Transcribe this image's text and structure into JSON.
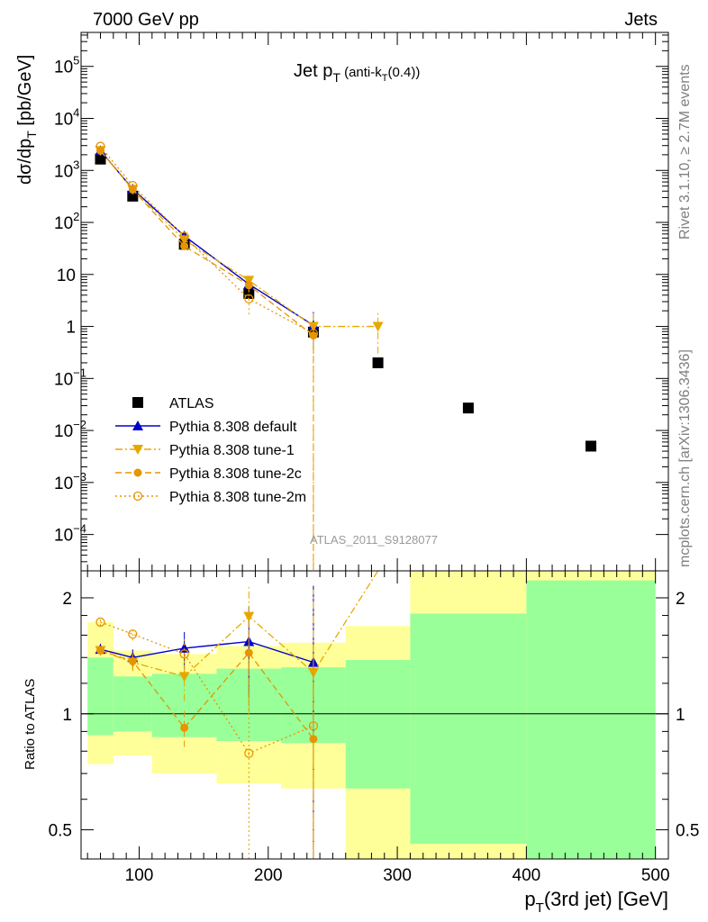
{
  "header": {
    "energy_label": "7000 GeV pp",
    "category_label": "Jets",
    "side_rivet": "Rivet 3.1.10, ≥ 2.7M events",
    "side_mcplots": "mcplots.cern.ch [arXiv:1306.3436]",
    "watermark": "ATLAS_2011_S9128077"
  },
  "chart_data": [
    {
      "type": "scatter",
      "panel": "main",
      "title_main": "Jet p",
      "title_sub": "T",
      "title_rest": " (anti-k",
      "title_rest_sub": "T",
      "title_rest_end": "(0.4))",
      "ylabel": "dσ/dp",
      "ylabel_sub": "T",
      "ylabel_unit": " [pb/GeV]",
      "yscale": "log",
      "ylim": [
        2e-05,
        450000
      ],
      "xlim": [
        55,
        510
      ],
      "yticks": [
        {
          "v": 0.0001,
          "base": "10",
          "exp": "−4"
        },
        {
          "v": 0.001,
          "base": "10",
          "exp": "−3"
        },
        {
          "v": 0.01,
          "base": "10",
          "exp": "−2"
        },
        {
          "v": 0.1,
          "base": "10",
          "exp": "−1"
        },
        {
          "v": 1,
          "base": "1",
          "exp": ""
        },
        {
          "v": 10,
          "base": "10",
          "exp": ""
        },
        {
          "v": 100,
          "base": "10",
          "exp": "2"
        },
        {
          "v": 1000,
          "base": "10",
          "exp": "3"
        },
        {
          "v": 10000,
          "base": "10",
          "exp": "4"
        },
        {
          "v": 100000,
          "base": "10",
          "exp": "5"
        }
      ],
      "series": [
        {
          "name": "ATLAS",
          "color": "#000000",
          "marker": "square",
          "line": "none",
          "x": [
            70,
            95,
            135,
            185,
            235,
            285,
            355,
            450
          ],
          "y": [
            1650,
            320,
            38,
            4.3,
            0.78,
            0.2,
            0.027,
            0.005
          ]
        },
        {
          "name": "Pythia 8.308 default",
          "color": "#0000cc",
          "marker": "triangle-up",
          "line": "solid",
          "x": [
            70,
            95,
            135,
            185,
            235
          ],
          "y": [
            2400,
            440,
            55,
            6.5,
            1.05
          ],
          "err_lo": [
            2200,
            410,
            48,
            4.8,
            0.35
          ],
          "err_hi": [
            2600,
            470,
            62,
            8.2,
            1.9
          ]
        },
        {
          "name": "Pythia 8.308 tune-1",
          "color": "#e6a800",
          "marker": "triangle-down",
          "line": "dashdot",
          "x": [
            70,
            95,
            135,
            185,
            235,
            285
          ],
          "y": [
            2400,
            430,
            46,
            7.7,
            1.0,
            1.0
          ],
          "err_lo": [
            2200,
            400,
            40,
            6.0,
            0.0,
            0.3
          ],
          "err_hi": [
            2600,
            460,
            52,
            9.5,
            1.9,
            1.8
          ]
        },
        {
          "name": "Pythia 8.308 tune-2c",
          "color": "#e69500",
          "marker": "circle",
          "line": "dashed",
          "x": [
            70,
            95,
            135,
            185,
            235
          ],
          "y": [
            2400,
            430,
            35,
            6.2,
            0.67
          ],
          "err_lo": [
            2200,
            400,
            31,
            4.5,
            0.0
          ],
          "err_hi": [
            2600,
            460,
            39,
            7.8,
            1.2
          ]
        },
        {
          "name": "Pythia 8.308 tune-2m",
          "color": "#e69500",
          "marker": "circle-open",
          "line": "dotted",
          "x": [
            70,
            95,
            135,
            185,
            235
          ],
          "y": [
            2900,
            510,
            54,
            3.4,
            0.73
          ],
          "err_lo": [
            2650,
            470,
            48,
            1.7,
            0.3
          ],
          "err_hi": [
            3150,
            550,
            60,
            5.1,
            1.2
          ]
        }
      ]
    },
    {
      "type": "scatter",
      "panel": "ratio",
      "ylabel": "Ratio to ATLAS",
      "xlabel": "p",
      "xlabel_sub": "T",
      "xlabel_rest": "(3rd jet) [GeV]",
      "yscale": "log",
      "ylim": [
        0.42,
        2.35
      ],
      "xlim": [
        55,
        510
      ],
      "yticks": [
        {
          "v": 0.5,
          "label": "0.5"
        },
        {
          "v": 1,
          "label": "1"
        },
        {
          "v": 2,
          "label": "2"
        }
      ],
      "xticks": [
        {
          "v": 100,
          "label": "100"
        },
        {
          "v": 200,
          "label": "200"
        },
        {
          "v": 300,
          "label": "300"
        },
        {
          "v": 400,
          "label": "400"
        },
        {
          "v": 500,
          "label": "500"
        }
      ],
      "bands": {
        "edges": [
          60,
          80,
          110,
          160,
          210,
          260,
          310,
          400,
          500
        ],
        "yellow_lo": [
          0.74,
          0.78,
          0.7,
          0.66,
          0.64,
          0.42,
          0.42,
          0.42
        ],
        "yellow_hi": [
          1.73,
          1.46,
          1.43,
          1.5,
          1.53,
          1.69,
          2.35,
          2.35
        ],
        "green_lo": [
          0.88,
          0.9,
          0.87,
          0.85,
          0.84,
          0.64,
          0.46,
          0.42
        ],
        "green_hi": [
          1.4,
          1.25,
          1.27,
          1.31,
          1.32,
          1.38,
          1.82,
          2.22
        ]
      },
      "series": [
        {
          "name": "Pythia 8.308 default",
          "x": [
            70,
            95,
            135,
            185,
            235
          ],
          "y": [
            1.47,
            1.4,
            1.48,
            1.54,
            1.36
          ],
          "err_lo": [
            1.43,
            1.33,
            1.3,
            1.1,
            0.42
          ],
          "err_hi": [
            1.52,
            1.47,
            1.63,
            1.9,
            2.15
          ]
        },
        {
          "name": "Pythia 8.308 tune-1",
          "x": [
            70,
            95,
            135,
            185,
            235,
            285
          ],
          "y": [
            1.46,
            1.36,
            1.25,
            1.79,
            1.28,
            2.35
          ],
          "err_lo": [
            1.42,
            1.29,
            1.08,
            1.0,
            0.42,
            2.35
          ],
          "err_hi": [
            1.5,
            1.43,
            1.42,
            2.15,
            2.1,
            2.35
          ]
        },
        {
          "name": "Pythia 8.308 tune-2c",
          "x": [
            70,
            95,
            135,
            185,
            235
          ],
          "y": [
            1.46,
            1.37,
            0.92,
            1.44,
            0.86
          ],
          "err_lo": [
            1.42,
            1.3,
            0.82,
            1.05,
            0.42
          ],
          "err_hi": [
            1.5,
            1.44,
            1.02,
            1.8,
            1.5
          ]
        },
        {
          "name": "Pythia 8.308 tune-2m",
          "x": [
            70,
            95,
            135,
            185,
            235
          ],
          "y": [
            1.73,
            1.61,
            1.43,
            0.79,
            0.93
          ],
          "err_lo": [
            1.69,
            1.55,
            1.28,
            0.42,
            0.42
          ],
          "err_hi": [
            1.77,
            1.67,
            1.58,
            1.2,
            1.5
          ]
        }
      ]
    }
  ]
}
